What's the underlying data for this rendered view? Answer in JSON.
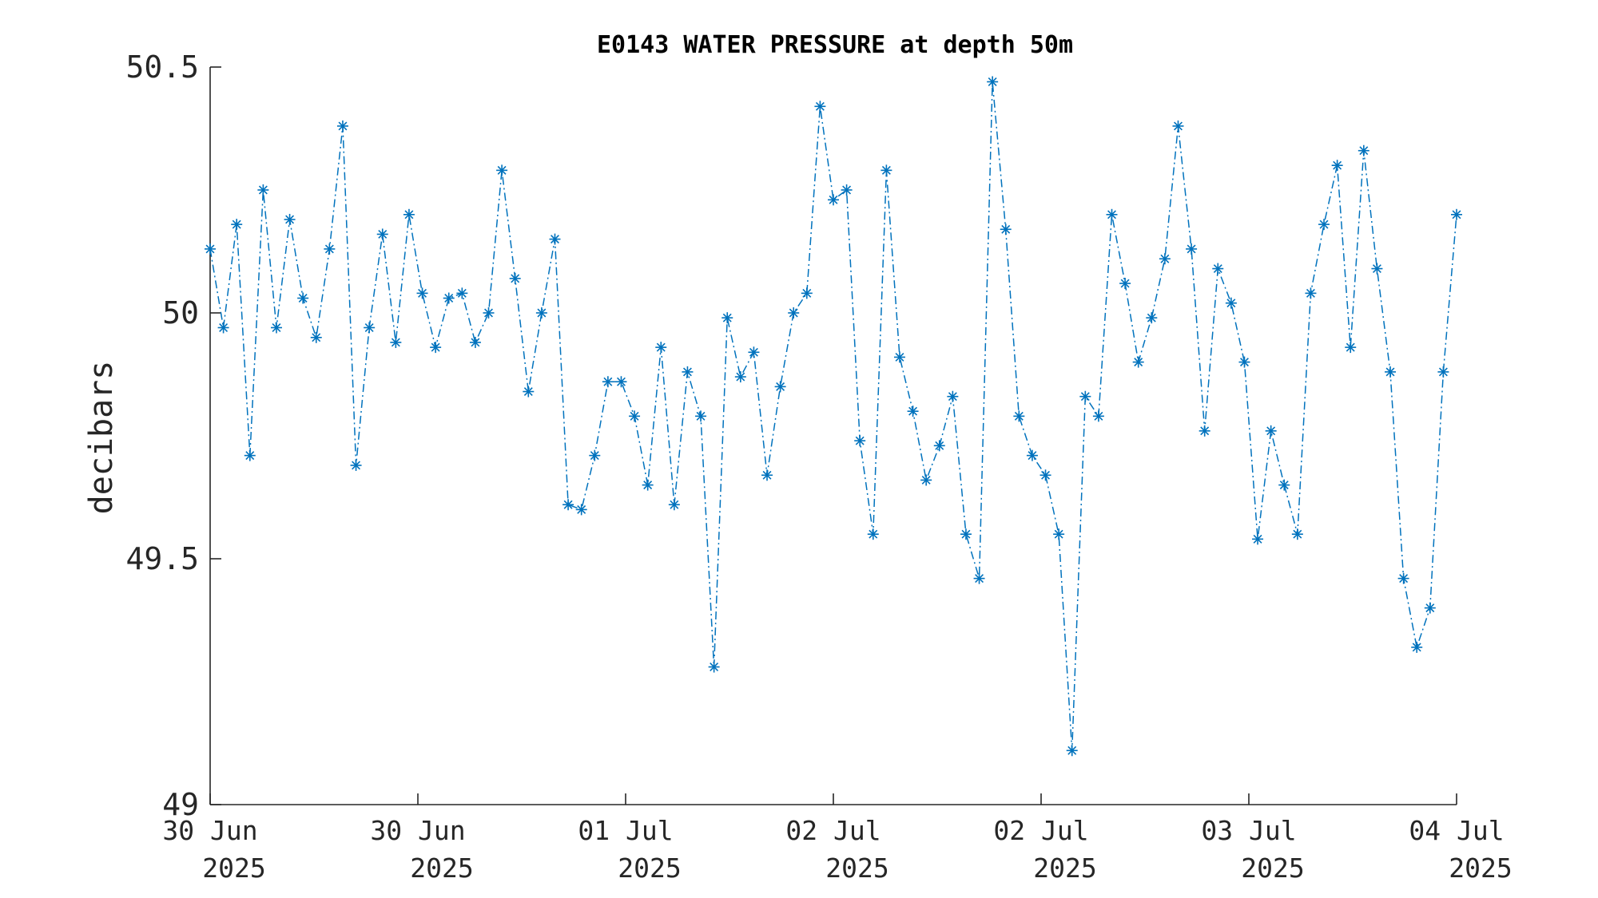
{
  "chart_data": {
    "type": "line",
    "title": "E0143 WATER PRESSURE at depth 50m",
    "xlabel": "",
    "ylabel": "decibars",
    "ylim": [
      49,
      50.5
    ],
    "yticks": [
      "49",
      "49.5",
      "50",
      "50.5"
    ],
    "xticks": [
      {
        "line1": "30 Jun",
        "line2": "2025"
      },
      {
        "line1": "30 Jun",
        "line2": "2025"
      },
      {
        "line1": "01 Jul",
        "line2": "2025"
      },
      {
        "line1": "02 Jul",
        "line2": "2025"
      },
      {
        "line1": "02 Jul",
        "line2": "2025"
      },
      {
        "line1": "03 Jul",
        "line2": "2025"
      },
      {
        "line1": "04 Jul",
        "line2": "2025"
      }
    ],
    "marker": "asterisk",
    "line_style": "dash-dot",
    "series_color": "#0072BD",
    "grid": false,
    "values": [
      50.13,
      49.97,
      50.18,
      49.71,
      50.25,
      49.97,
      50.19,
      50.03,
      49.95,
      50.13,
      50.38,
      49.69,
      49.97,
      50.16,
      49.94,
      50.2,
      50.04,
      49.93,
      50.03,
      50.04,
      49.94,
      50.0,
      50.29,
      50.07,
      49.84,
      50.0,
      50.15,
      49.61,
      49.6,
      49.71,
      49.86,
      49.86,
      49.79,
      49.65,
      49.93,
      49.61,
      49.88,
      49.79,
      49.28,
      49.99,
      49.87,
      49.92,
      49.67,
      49.85,
      50.0,
      50.04,
      50.42,
      50.23,
      50.25,
      49.74,
      49.55,
      50.29,
      49.91,
      49.8,
      49.66,
      49.73,
      49.83,
      49.55,
      49.46,
      50.47,
      50.17,
      49.79,
      49.71,
      49.67,
      49.55,
      49.11,
      49.83,
      49.79,
      50.2,
      50.06,
      49.9,
      49.99,
      50.11,
      50.38,
      50.13,
      49.76,
      50.09,
      50.02,
      49.9,
      49.54,
      49.76,
      49.65,
      49.55,
      50.04,
      50.18,
      50.3,
      49.93,
      50.33,
      50.09,
      49.88,
      49.46,
      49.32,
      49.4,
      49.88,
      50.2
    ]
  }
}
